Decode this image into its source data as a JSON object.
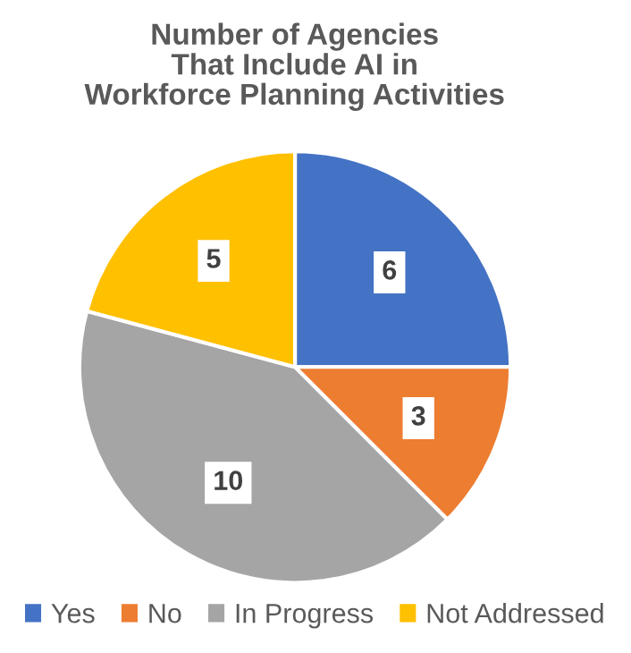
{
  "chart_data": {
    "type": "pie",
    "title": "Number of Agencies\nThat Include AI in\nWorkforce Planning Activities",
    "categories": [
      "Yes",
      "No",
      "In Progress",
      "Not Addressed"
    ],
    "values": [
      6,
      3,
      10,
      5
    ],
    "colors": [
      "#4472c4",
      "#ed7d31",
      "#a5a5a5",
      "#ffc000"
    ],
    "data_labels": true,
    "legend": "bottom"
  }
}
